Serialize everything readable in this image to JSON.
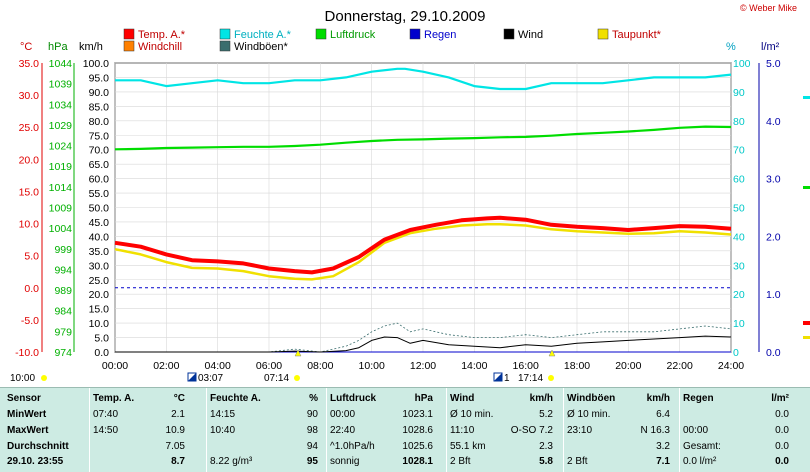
{
  "title": "Donnerstag, 29.10.2009",
  "copyright": "© Weber Mike",
  "colors": {
    "temp": "#ff0000",
    "humidity": "#00e5e5",
    "pressure": "#00dd00",
    "rain": "#0000cc",
    "wind": "#000000",
    "dewpoint": "#f0e000",
    "windchill": "#ff8000",
    "gust": "#3a6e6e"
  },
  "axis_labels": {
    "celsius": "°C",
    "hpa": "hPa",
    "kmh": "km/h",
    "percent": "%",
    "lm2": "l/m²"
  },
  "legend": [
    {
      "key": "temp",
      "label": "Temp. A.*"
    },
    {
      "key": "humidity",
      "label": "Feuchte A.*"
    },
    {
      "key": "pressure",
      "label": "Luftdruck"
    },
    {
      "key": "rain",
      "label": "Regen"
    },
    {
      "key": "wind",
      "label": "Wind"
    },
    {
      "key": "dewpoint",
      "label": "Taupunkt*"
    },
    {
      "key": "windchill",
      "label": "Windchill"
    },
    {
      "key": "gust",
      "label": "Windböen*"
    }
  ],
  "sun_markers": {
    "sunrise_label": "07:14",
    "sunset_label": "17:14",
    "moonrise_label": "03:07",
    "moonset_label": "10:00",
    "extra": "1"
  },
  "chart_data": {
    "type": "line",
    "x_ticks": [
      "00:00",
      "02:00",
      "04:00",
      "06:00",
      "08:00",
      "10:00",
      "12:00",
      "14:00",
      "16:00",
      "18:00",
      "20:00",
      "22:00",
      "24:00"
    ],
    "xlim_hours": [
      0,
      24
    ],
    "axes": {
      "celsius": {
        "ticks": [
          "35.0",
          "30.0",
          "25.0",
          "20.0",
          "15.0",
          "10.0",
          "5.0",
          "0.0",
          "-5.0",
          "-10.0"
        ],
        "range": [
          -10,
          35
        ]
      },
      "hpa": {
        "ticks": [
          "1044",
          "1039",
          "1034",
          "1029",
          "1024",
          "1019",
          "1014",
          "1009",
          "1004",
          "999",
          "994",
          "989",
          "984",
          "979",
          "974"
        ],
        "range": [
          974,
          1044
        ]
      },
      "kmh": {
        "ticks": [
          "100.0",
          "95.0",
          "90.0",
          "85.0",
          "80.0",
          "75.0",
          "70.0",
          "65.0",
          "60.0",
          "55.0",
          "50.0",
          "45.0",
          "40.0",
          "35.0",
          "30.0",
          "25.0",
          "20.0",
          "15.0",
          "10.0",
          "5.0",
          "0.0"
        ],
        "range": [
          0,
          100
        ]
      },
      "percent": {
        "ticks": [
          "100",
          "90",
          "80",
          "70",
          "60",
          "50",
          "40",
          "30",
          "20",
          "10",
          "0"
        ],
        "range": [
          0,
          100
        ]
      },
      "lm2": {
        "ticks": [
          "5.0",
          "4.0",
          "3.0",
          "2.0",
          "1.0",
          "0.0"
        ],
        "range": [
          0,
          5
        ]
      }
    },
    "zero_line_celsius": 0,
    "series": [
      {
        "name": "Temp. A.*",
        "axis": "celsius",
        "x": [
          0,
          1,
          2,
          3,
          4,
          5,
          6,
          7,
          7.67,
          8.5,
          9.5,
          10.5,
          11.5,
          12.5,
          13.5,
          14.5,
          15,
          16,
          17,
          18,
          19,
          20,
          21,
          22,
          23,
          24
        ],
        "y": [
          7.0,
          6.4,
          5.2,
          4.3,
          4.1,
          3.8,
          3.0,
          2.6,
          2.4,
          3.0,
          4.8,
          7.5,
          9.0,
          9.8,
          10.5,
          10.8,
          10.9,
          10.6,
          9.8,
          9.5,
          9.3,
          9.0,
          9.3,
          9.6,
          9.5,
          9.2
        ]
      },
      {
        "name": "Taupunkt*",
        "axis": "celsius",
        "x": [
          0,
          1,
          2,
          3,
          4,
          5,
          6,
          7,
          7.67,
          8.5,
          9.5,
          10.5,
          11.5,
          12.5,
          13.5,
          14.5,
          15,
          16,
          17,
          18,
          19,
          20,
          21,
          22,
          23,
          24
        ],
        "y": [
          6.0,
          5.2,
          4.0,
          3.1,
          3.0,
          2.6,
          1.8,
          1.4,
          1.3,
          1.8,
          4.0,
          7.0,
          8.5,
          9.2,
          9.7,
          9.9,
          9.9,
          9.7,
          9.1,
          8.8,
          8.6,
          8.4,
          8.5,
          8.8,
          8.6,
          8.3
        ]
      },
      {
        "name": "Feuchte A.*",
        "axis": "percent",
        "x": [
          0,
          1,
          2,
          3,
          4,
          5,
          6,
          7,
          8,
          9,
          10,
          11,
          11.3,
          12,
          13,
          14,
          15,
          16,
          17,
          18,
          19,
          20,
          21,
          22,
          23,
          24
        ],
        "y": [
          94,
          94,
          92,
          93,
          94,
          93,
          93,
          94,
          94,
          95,
          97,
          98,
          98,
          97,
          95,
          92,
          91,
          91,
          93,
          93,
          93,
          94,
          95,
          95,
          95,
          96
        ]
      },
      {
        "name": "Luftdruck",
        "axis": "hpa",
        "x": [
          0,
          1,
          2,
          3,
          4,
          5,
          6,
          7,
          8,
          9,
          10,
          11,
          12,
          13,
          14,
          15,
          16,
          17,
          18,
          19,
          20,
          21,
          22,
          23,
          24
        ],
        "y": [
          1023.1,
          1023.2,
          1023.4,
          1023.5,
          1023.6,
          1023.7,
          1023.7,
          1023.9,
          1024.2,
          1024.7,
          1025.1,
          1025.4,
          1025.5,
          1025.7,
          1025.8,
          1026.0,
          1026.1,
          1026.4,
          1026.8,
          1027.1,
          1027.4,
          1027.8,
          1028.3,
          1028.6,
          1028.5
        ]
      },
      {
        "name": "Wind",
        "axis": "kmh",
        "x": [
          0,
          2,
          4,
          6,
          7,
          8,
          9,
          9.5,
          10,
          10.5,
          11,
          11.5,
          12,
          13,
          14,
          15,
          16,
          17,
          18,
          19,
          20,
          21,
          22,
          23,
          24
        ],
        "y": [
          0,
          0,
          0,
          0,
          0.3,
          0,
          0.5,
          1.5,
          4.0,
          5.2,
          5.0,
          3.0,
          4.0,
          2.5,
          2.0,
          1.5,
          2.5,
          2.0,
          3.0,
          3.5,
          4.0,
          4.5,
          5.0,
          5.5,
          5.2
        ]
      },
      {
        "name": "Windböen*",
        "axis": "kmh",
        "x": [
          0,
          2,
          4,
          6,
          7,
          8,
          9,
          9.5,
          10,
          10.5,
          11,
          11.5,
          12,
          13,
          14,
          15,
          16,
          17,
          18,
          19,
          20,
          21,
          22,
          23,
          24
        ],
        "y": [
          0,
          0,
          0,
          0,
          1.0,
          0,
          2,
          4,
          7,
          9,
          10,
          7,
          8,
          6,
          5,
          5,
          6,
          5,
          6,
          7,
          7,
          7,
          8,
          9,
          8
        ]
      },
      {
        "name": "Regen",
        "axis": "lm2",
        "x": [
          0,
          24
        ],
        "y": [
          0,
          0
        ]
      }
    ]
  },
  "table": {
    "row_labels": [
      "Sensor",
      "MinWert",
      "MaxWert",
      "Durchschnitt",
      "29.10. 23:55"
    ],
    "groups": [
      {
        "header": [
          "Temp. A.",
          "°C"
        ],
        "rows": [
          [
            "07:40",
            "2.1"
          ],
          [
            "14:50",
            "10.9"
          ],
          [
            "",
            "7.05"
          ],
          [
            "",
            "8.7"
          ]
        ]
      },
      {
        "header": [
          "Feuchte A.",
          "%"
        ],
        "rows": [
          [
            "14:15",
            "90"
          ],
          [
            "10:40",
            "98"
          ],
          [
            "",
            "94"
          ],
          [
            "8.22 g/m³",
            "95"
          ]
        ]
      },
      {
        "header": [
          "Luftdruck",
          "hPa"
        ],
        "rows": [
          [
            "00:00",
            "1023.1"
          ],
          [
            "22:40",
            "1028.6"
          ],
          [
            "^1.0hPa/h",
            "1025.6"
          ],
          [
            "sonnig",
            "1028.1"
          ]
        ]
      },
      {
        "header": [
          "Wind",
          "km/h"
        ],
        "rows": [
          [
            "Ø 10 min.",
            "5.2"
          ],
          [
            "11:10",
            "O-SO 7.2"
          ],
          [
            "55.1 km",
            "2.3"
          ],
          [
            "2 Bft",
            "5.8"
          ]
        ]
      },
      {
        "header": [
          "Windböen",
          "km/h"
        ],
        "rows": [
          [
            "Ø 10 min.",
            "6.4"
          ],
          [
            "23:10",
            "N 16.3"
          ],
          [
            "",
            "3.2"
          ],
          [
            "2 Bft",
            "7.1"
          ]
        ]
      },
      {
        "header": [
          "Regen",
          "l/m²"
        ],
        "rows": [
          [
            "",
            "0.0"
          ],
          [
            "00:00",
            "0.0"
          ],
          [
            "Gesamt:",
            "0.0"
          ],
          [
            "0.0 l/m²",
            "0.0"
          ]
        ]
      }
    ]
  }
}
